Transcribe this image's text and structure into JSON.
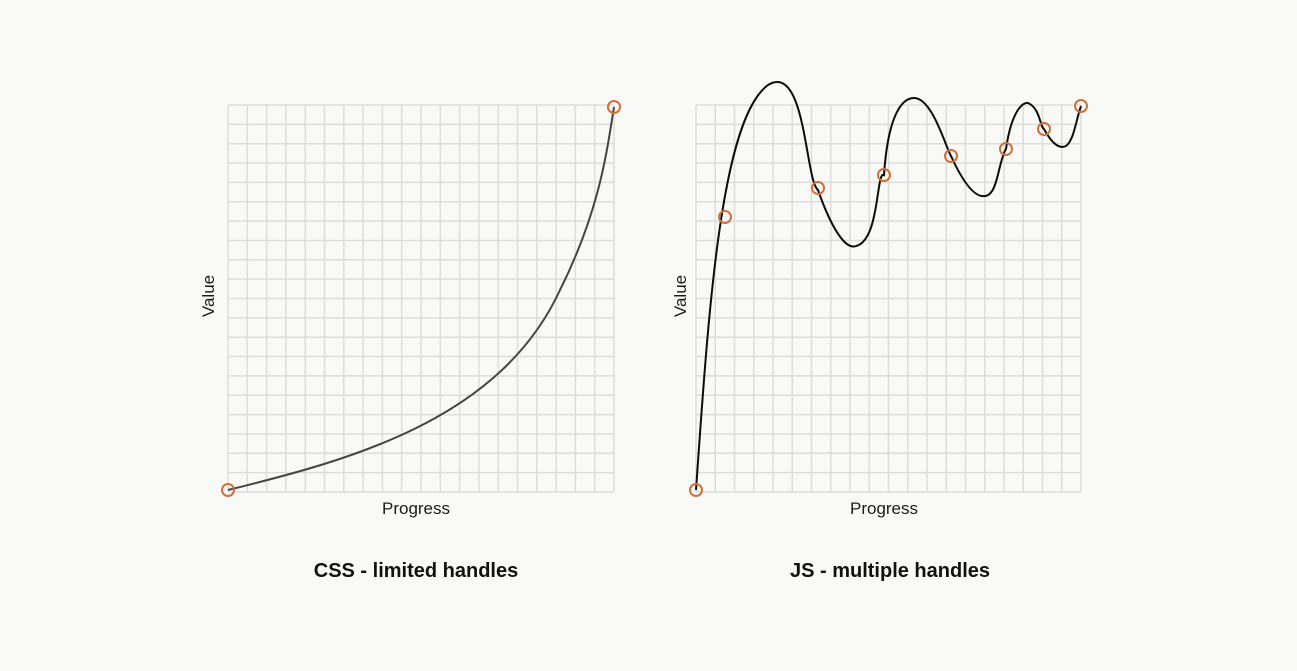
{
  "colors": {
    "background": "#f9faf7",
    "grid": "#dddddd",
    "curve_left": "#444444",
    "curve_right": "#0d0d0d",
    "handle": "#d0703a"
  },
  "panels": [
    {
      "name": "css",
      "caption": "CSS - limited handles",
      "x_label": "Progress",
      "y_label": "Value"
    },
    {
      "name": "js",
      "caption": "JS - multiple handles",
      "x_label": "Progress",
      "y_label": "Value"
    }
  ]
}
